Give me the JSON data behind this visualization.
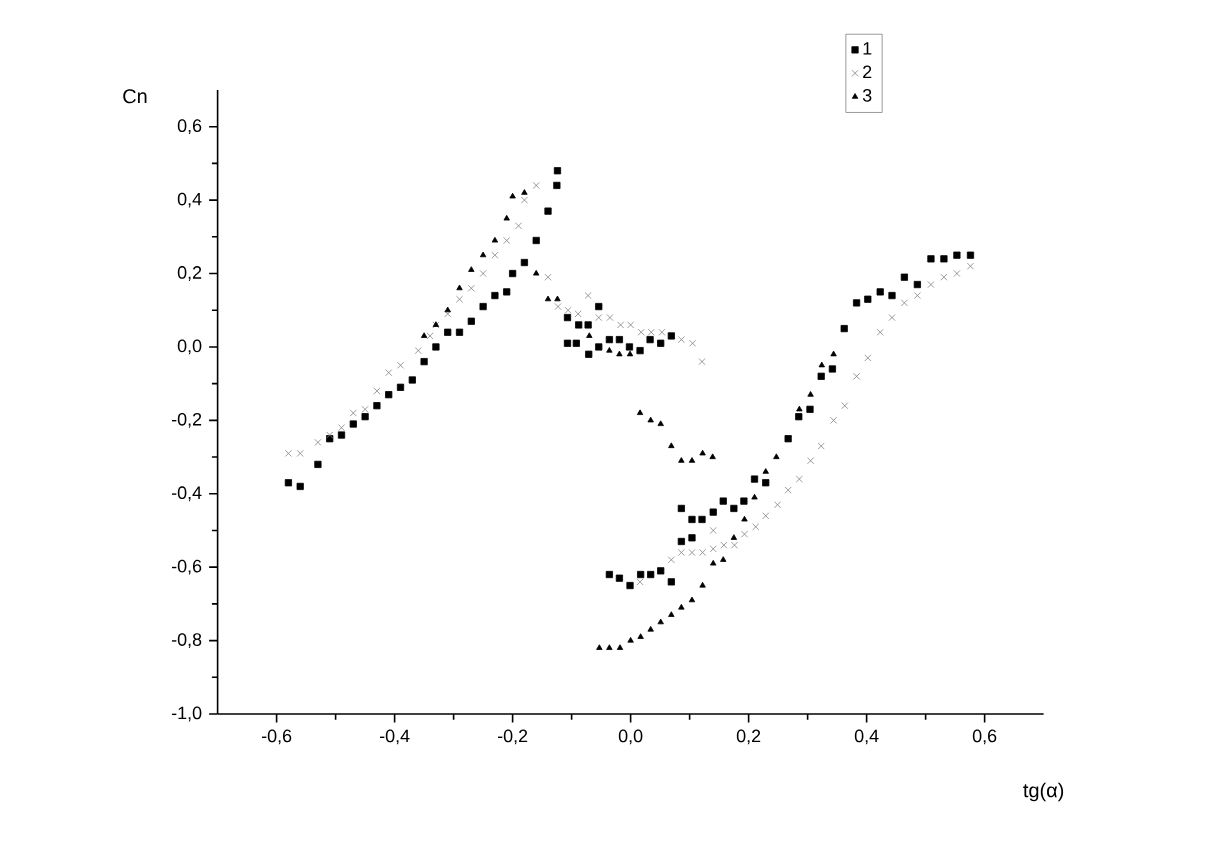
{
  "chart_data": {
    "type": "scatter",
    "xlabel": "tg(α)",
    "ylabel": "Cn",
    "xlim": [
      -0.7,
      0.7
    ],
    "ylim": [
      -1.0,
      0.7
    ],
    "xticks": [
      {
        "value": -0.6,
        "label": "-0,6"
      },
      {
        "value": -0.4,
        "label": "-0,4"
      },
      {
        "value": -0.2,
        "label": "-0,2"
      },
      {
        "value": 0.0,
        "label": "0,0"
      },
      {
        "value": 0.2,
        "label": "0,2"
      },
      {
        "value": 0.4,
        "label": "0,4"
      },
      {
        "value": 0.6,
        "label": "0,6"
      }
    ],
    "yticks": [
      {
        "value": -1.0,
        "label": "-1,0"
      },
      {
        "value": -0.8,
        "label": "-0,8"
      },
      {
        "value": -0.6,
        "label": "-0,6"
      },
      {
        "value": -0.4,
        "label": "-0,4"
      },
      {
        "value": -0.2,
        "label": "-0,2"
      },
      {
        "value": 0.0,
        "label": "0,0"
      },
      {
        "value": 0.2,
        "label": "0,2"
      },
      {
        "value": 0.4,
        "label": "0,4"
      },
      {
        "value": 0.6,
        "label": "0,6"
      }
    ],
    "grid": false,
    "legend": "top right",
    "series": [
      {
        "name": "1",
        "color": "#000000",
        "marker": "square",
        "x": [
          -0.58,
          -0.56,
          -0.53,
          -0.51,
          -0.49,
          -0.47,
          -0.45,
          -0.43,
          -0.41,
          -0.39,
          -0.37,
          -0.35,
          -0.33,
          -0.31,
          -0.29,
          -0.27,
          -0.25,
          -0.23,
          -0.21,
          -0.2,
          -0.18,
          -0.16,
          -0.14,
          -0.125,
          -0.124,
          -0.107,
          -0.107,
          -0.092,
          -0.088,
          -0.072,
          -0.071,
          -0.054,
          -0.054,
          -0.036,
          -0.019,
          -0.002,
          0.016,
          0.033,
          0.051,
          0.069,
          -0.036,
          -0.019,
          -0.001,
          0.017,
          0.034,
          0.051,
          0.069,
          0.086,
          0.086,
          0.104,
          0.104,
          0.121,
          0.14,
          0.157,
          0.175,
          0.192,
          0.21,
          0.229,
          0.267,
          0.285,
          0.304,
          0.323,
          0.342,
          0.362,
          0.383,
          0.402,
          0.423,
          0.443,
          0.464,
          0.486,
          0.509,
          0.531,
          0.553,
          0.576
        ],
        "values": [
          -0.37,
          -0.38,
          -0.32,
          -0.25,
          -0.24,
          -0.21,
          -0.19,
          -0.16,
          -0.13,
          -0.11,
          -0.09,
          -0.04,
          0.0,
          0.04,
          0.04,
          0.07,
          0.11,
          0.14,
          0.15,
          0.2,
          0.23,
          0.29,
          0.37,
          0.44,
          0.48,
          0.08,
          0.01,
          0.01,
          0.06,
          0.06,
          -0.02,
          0.11,
          0.0,
          0.02,
          0.02,
          0.0,
          -0.01,
          0.02,
          0.01,
          0.03,
          -0.62,
          -0.63,
          -0.65,
          -0.62,
          -0.62,
          -0.61,
          -0.64,
          -0.44,
          -0.53,
          -0.47,
          -0.52,
          -0.47,
          -0.45,
          -0.42,
          -0.44,
          -0.42,
          -0.36,
          -0.37,
          -0.25,
          -0.19,
          -0.17,
          -0.08,
          -0.06,
          0.05,
          0.12,
          0.13,
          0.15,
          0.14,
          0.19,
          0.17,
          0.24,
          0.24,
          0.25,
          0.25
        ]
      },
      {
        "name": "2",
        "color": "#808080",
        "marker": "cross",
        "x": [
          -0.58,
          -0.56,
          -0.53,
          -0.51,
          -0.49,
          -0.47,
          -0.45,
          -0.43,
          -0.41,
          -0.39,
          -0.36,
          -0.34,
          -0.33,
          -0.31,
          -0.29,
          -0.27,
          -0.25,
          -0.23,
          -0.21,
          -0.19,
          -0.18,
          -0.16,
          -0.14,
          -0.123,
          -0.106,
          -0.089,
          -0.072,
          -0.054,
          -0.035,
          -0.017,
          0.0,
          0.018,
          0.035,
          0.053,
          0.086,
          0.105,
          0.121,
          0.016,
          0.069,
          0.086,
          0.104,
          0.122,
          0.14,
          0.14,
          0.158,
          0.176,
          0.193,
          0.212,
          0.229,
          0.249,
          0.267,
          0.286,
          0.305,
          0.323,
          0.344,
          0.363,
          0.383,
          0.402,
          0.423,
          0.443,
          0.464,
          0.486,
          0.509,
          0.531,
          0.553,
          0.576
        ],
        "values": [
          -0.29,
          -0.29,
          -0.26,
          -0.24,
          -0.22,
          -0.18,
          -0.17,
          -0.12,
          -0.07,
          -0.05,
          -0.01,
          0.03,
          0.06,
          0.09,
          0.13,
          0.16,
          0.2,
          0.25,
          0.29,
          0.33,
          0.4,
          0.44,
          0.19,
          0.11,
          0.1,
          0.09,
          0.14,
          0.08,
          0.08,
          0.06,
          0.06,
          0.04,
          0.04,
          0.04,
          0.02,
          0.01,
          -0.04,
          -0.64,
          -0.58,
          -0.56,
          -0.56,
          -0.56,
          -0.5,
          -0.55,
          -0.54,
          -0.54,
          -0.51,
          -0.49,
          -0.46,
          -0.43,
          -0.39,
          -0.36,
          -0.31,
          -0.27,
          -0.2,
          -0.16,
          -0.08,
          -0.03,
          0.04,
          0.08,
          0.12,
          0.14,
          0.17,
          0.19,
          0.2,
          0.22
        ]
      },
      {
        "name": "3",
        "color": "#000000",
        "marker": "triangle",
        "x": [
          -0.35,
          -0.33,
          -0.31,
          -0.29,
          -0.27,
          -0.25,
          -0.23,
          -0.21,
          -0.2,
          -0.18,
          -0.16,
          -0.14,
          -0.124,
          -0.106,
          -0.07,
          -0.036,
          -0.019,
          -0.001,
          0.016,
          0.034,
          0.051,
          0.069,
          0.086,
          0.104,
          0.122,
          0.139,
          -0.053,
          -0.036,
          -0.018,
          0.0,
          0.017,
          0.034,
          0.051,
          0.069,
          0.086,
          0.104,
          0.122,
          0.14,
          0.157,
          0.175,
          0.193,
          0.21,
          0.229,
          0.247,
          0.286,
          0.305,
          0.324,
          0.344
        ],
        "values": [
          0.03,
          0.06,
          0.1,
          0.16,
          0.21,
          0.25,
          0.29,
          0.35,
          0.41,
          0.42,
          0.2,
          0.13,
          0.13,
          null,
          0.03,
          -0.01,
          -0.02,
          -0.02,
          -0.18,
          -0.2,
          -0.21,
          -0.27,
          -0.31,
          -0.31,
          -0.29,
          -0.3,
          -0.82,
          -0.82,
          -0.82,
          -0.8,
          -0.79,
          -0.77,
          -0.75,
          -0.73,
          -0.71,
          -0.69,
          -0.65,
          -0.59,
          -0.58,
          -0.52,
          -0.47,
          -0.41,
          -0.34,
          -0.3,
          -0.17,
          -0.13,
          -0.05,
          -0.02
        ]
      }
    ]
  }
}
